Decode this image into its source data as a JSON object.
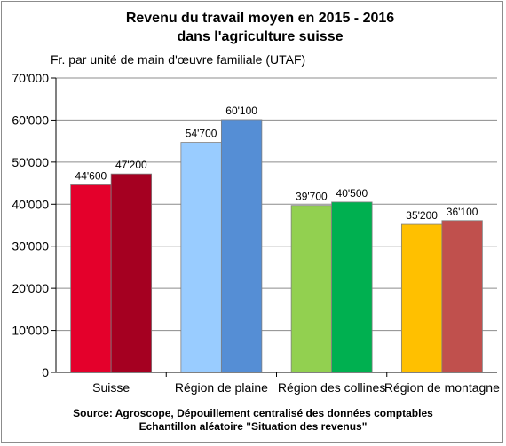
{
  "chart_data": {
    "type": "bar",
    "title": [
      "Revenu du travail moyen en 2015 - 2016",
      "dans l'agriculture suisse"
    ],
    "ylabel": "Fr. par unité de main d'œuvre familiale (UTAF)",
    "xlabel": "",
    "ylim": [
      0,
      70000
    ],
    "yticks": [
      0,
      10000,
      20000,
      30000,
      40000,
      50000,
      60000,
      70000
    ],
    "ytick_labels": [
      "0",
      "10'000",
      "20'000",
      "30'000",
      "40'000",
      "50'000",
      "60'000",
      "70'000"
    ],
    "grid": true,
    "categories": [
      "Suisse",
      "Région de plaine",
      "Région des collines",
      "Région de montagne"
    ],
    "groups": [
      {
        "category": "Suisse",
        "bars": [
          {
            "value": 44600,
            "label": "44'600",
            "color": "#e4002b"
          },
          {
            "value": 47200,
            "label": "47'200",
            "color": "#a50021"
          }
        ]
      },
      {
        "category": "Région de plaine",
        "bars": [
          {
            "value": 54700,
            "label": "54'700",
            "color": "#99ccff"
          },
          {
            "value": 60100,
            "label": "60'100",
            "color": "#558ed5"
          }
        ]
      },
      {
        "category": "Région des collines",
        "bars": [
          {
            "value": 39700,
            "label": "39'700",
            "color": "#92d050"
          },
          {
            "value": 40500,
            "label": "40'500",
            "color": "#00b050"
          }
        ]
      },
      {
        "category": "Région de montagne",
        "bars": [
          {
            "value": 35200,
            "label": "35'200",
            "color": "#ffc000"
          },
          {
            "value": 36100,
            "label": "36'100",
            "color": "#c0504d"
          }
        ]
      }
    ],
    "source": [
      "Source: Agroscope, Dépouillement centralisé des données comptables",
      "Echantillon aléatoire \"Situation des revenus\""
    ]
  }
}
